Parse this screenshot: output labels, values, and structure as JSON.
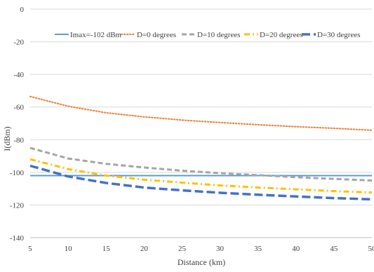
{
  "chart_data": {
    "type": "line",
    "xlabel": "Distance  (km)",
    "ylabel": "I(dBm)",
    "xlim": [
      5,
      50
    ],
    "ylim": [
      -140,
      0
    ],
    "xticks": [
      5,
      10,
      15,
      20,
      25,
      30,
      35,
      40,
      45,
      50
    ],
    "yticks": [
      0,
      -20,
      -40,
      -60,
      -80,
      -100,
      -120,
      -140
    ],
    "x_tick_labels": [
      "5",
      "10",
      "15",
      "20",
      "25",
      "30",
      "35",
      "40",
      "45",
      "50"
    ],
    "y_tick_labels": [
      "0",
      "-20",
      "-40",
      "-60",
      "-80",
      "-100",
      "-120",
      "-140"
    ],
    "grid": "horizontal",
    "legend_position": "top-inside",
    "x": [
      5,
      10,
      15,
      20,
      25,
      30,
      35,
      40,
      45,
      50
    ],
    "series": [
      {
        "name": "Imax=-102 dBm",
        "color": "#5b9bd5",
        "dash": "solid",
        "values": [
          -102,
          -102,
          -102,
          -102,
          -102,
          -102,
          -102,
          -102,
          -102,
          -102
        ]
      },
      {
        "name": "D=0 degrees",
        "color": "#ed7d31",
        "dash": "dot",
        "values": [
          -53.5,
          -59.5,
          -63.5,
          -66,
          -68,
          -69.5,
          -70.8,
          -72,
          -73,
          -74.2
        ]
      },
      {
        "name": "D=10 degrees",
        "color": "#a5a5a5",
        "dash": "dash",
        "values": [
          -85,
          -91.5,
          -94.8,
          -97,
          -99,
          -100.5,
          -101.7,
          -103,
          -104,
          -105
        ]
      },
      {
        "name": "D=20 degrees",
        "color": "#ffc000",
        "dash": "dashdot",
        "values": [
          -92,
          -98,
          -102,
          -104.5,
          -106.3,
          -108,
          -109.3,
          -110.4,
          -111.5,
          -112.3
        ]
      },
      {
        "name": "D=30 degrees",
        "color": "#4472c4",
        "dash": "longdash",
        "values": [
          -96,
          -102.5,
          -106.5,
          -109.3,
          -111,
          -112.5,
          -113.7,
          -114.8,
          -115.8,
          -116.5
        ]
      }
    ]
  }
}
